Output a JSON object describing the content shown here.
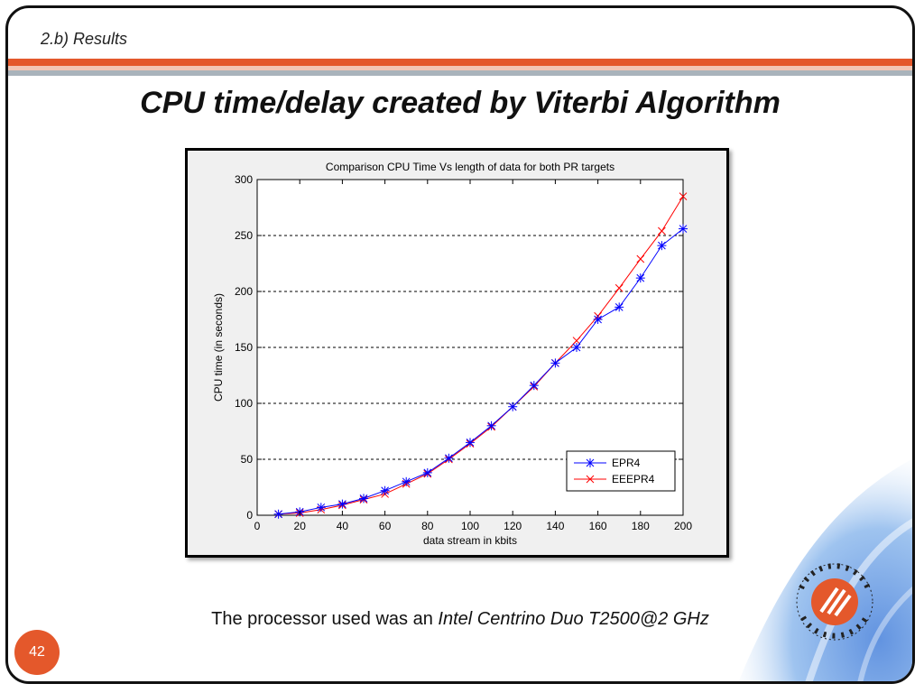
{
  "slide": {
    "section_label": "2.b) Results",
    "title": "CPU time/delay created by Viterbi Algorithm",
    "caption_prefix": "The processor used was an ",
    "caption_emphasis": "Intel Centrino Duo T2500@2 GHz",
    "page_number": "42",
    "colors": {
      "accent": "#e4582b",
      "band_light": "#f3c6b4",
      "band_gray": "#a9b3bb"
    }
  },
  "chart_data": {
    "type": "line",
    "title": "Comparison CPU Time Vs length of data for both PR targets",
    "xlabel": "data stream in kbits",
    "ylabel": "CPU time (in seconds)",
    "xlim": [
      0,
      200
    ],
    "ylim": [
      0,
      300
    ],
    "xticks": [
      0,
      20,
      40,
      60,
      80,
      100,
      120,
      140,
      160,
      180,
      200
    ],
    "yticks": [
      0,
      50,
      100,
      150,
      200,
      250,
      300
    ],
    "grid": "horizontal dashed",
    "legend_position": "lower-right",
    "x": [
      10,
      20,
      30,
      40,
      50,
      60,
      70,
      80,
      90,
      100,
      110,
      120,
      130,
      140,
      150,
      160,
      170,
      180,
      190,
      200
    ],
    "series": [
      {
        "name": "EPR4",
        "color": "#0000ff",
        "marker": "star",
        "values": [
          1,
          3,
          7,
          10,
          15,
          22,
          30,
          38,
          51,
          65,
          80,
          97,
          116,
          136,
          150,
          175,
          186,
          212,
          241,
          256
        ]
      },
      {
        "name": "EEEPR4",
        "color": "#ff0000",
        "marker": "x",
        "values": [
          1,
          2,
          5,
          9,
          14,
          19,
          28,
          37,
          50,
          64,
          79,
          97,
          115,
          136,
          156,
          178,
          203,
          229,
          254,
          285
        ]
      }
    ]
  }
}
